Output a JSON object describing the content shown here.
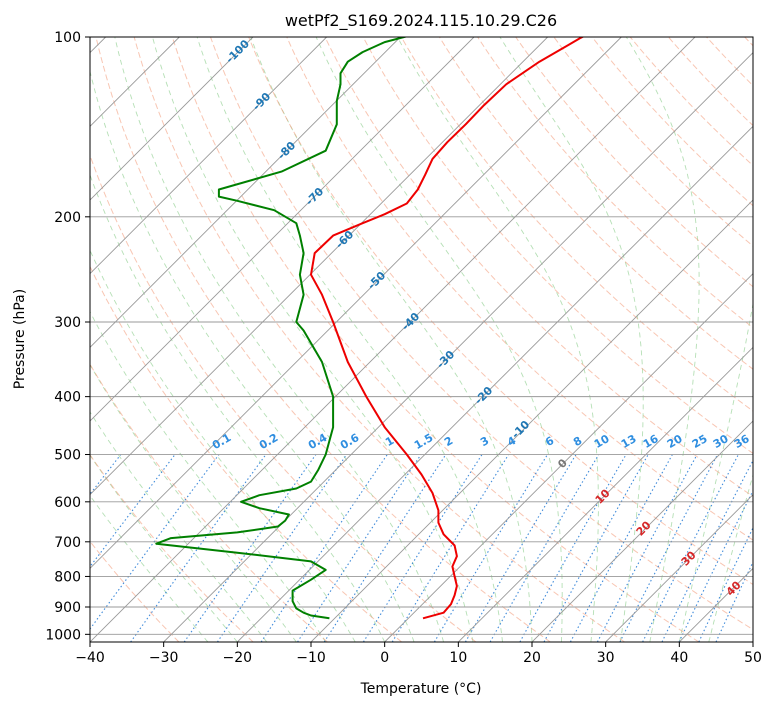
{
  "chart_data": {
    "type": "line",
    "title": "wetPf2_S169.2024.115.10.29.C26",
    "xlabel": "Temperature (°C)",
    "ylabel": "Pressure (hPa)",
    "xlim": [
      -40,
      50
    ],
    "ylim": [
      1030,
      100
    ],
    "y_scale": "log",
    "grid": true,
    "x_ticks": [
      -40,
      -30,
      -20,
      -10,
      0,
      10,
      20,
      30,
      40,
      50
    ],
    "y_ticks": [
      1000,
      900,
      800,
      700,
      600,
      500,
      400,
      300,
      200,
      100
    ],
    "series": [
      {
        "name": "",
        "color": "#ee0000",
        "x": [
          5.2,
          8.0,
          9.0,
          9.5,
          9.8,
          9.5,
          9.2,
          9.8,
          9.5,
          8.0,
          7.3,
          7.3,
          6.5,
          5.0,
          3.0,
          0.0,
          -2.5,
          -5.0,
          -7.0,
          -8.5,
          -10.0,
          -9.5,
          -7.0,
          -3.0,
          0.0,
          3.0,
          4.5,
          5.5,
          6.5,
          8.5,
          11.0,
          13.5,
          16.5,
          21.0,
          25.0,
          26.5,
          27.5
        ],
        "y": [
          940,
          920,
          890,
          860,
          830,
          800,
          770,
          740,
          710,
          680,
          650,
          620,
          580,
          540,
          500,
          450,
          400,
          350,
          300,
          270,
          250,
          230,
          215,
          205,
          198,
          190,
          180,
          170,
          160,
          150,
          140,
          130,
          120,
          110,
          103,
          100.5,
          99
        ]
      },
      {
        "name": "",
        "color": "#008000",
        "x": [
          -7.5,
          -10.0,
          -11.0,
          -12.0,
          -12.5,
          -12.5,
          -10.0,
          -8.0,
          -10.0,
          -20.0,
          -31.0,
          -29.0,
          -20.0,
          -14.5,
          -13.5,
          -13.0,
          -17.0,
          -19.5,
          -17.0,
          -12.0,
          -10.0,
          -9.0,
          -8.0,
          -7.0,
          -7.0,
          -8.5,
          -11.0,
          -12.0,
          -11.0,
          -11.5,
          -11.0,
          -11.5,
          -12.0,
          -15.0,
          -20.0,
          -22.5,
          -22.5,
          -14.0,
          -8.0,
          -6.5,
          -6.5,
          -6.0,
          -6.0,
          -5.0,
          -3.0,
          0.0,
          4.0
        ],
        "y": [
          940,
          930,
          920,
          905,
          880,
          845,
          810,
          780,
          755,
          730,
          705,
          690,
          675,
          660,
          645,
          630,
          615,
          600,
          585,
          570,
          555,
          530,
          500,
          450,
          400,
          350,
          310,
          300,
          270,
          250,
          230,
          215,
          205,
          195,
          188,
          185,
          180,
          168,
          155,
          140,
          128,
          120,
          115,
          110,
          106,
          102,
          99
        ]
      }
    ],
    "annotations": {
      "dry_adiabat_labels": [
        "-100",
        "-90",
        "-80",
        "-70",
        "-60",
        "-50",
        "-40",
        "-30",
        "-20",
        "-10",
        "0",
        "10",
        "20",
        "30",
        "40"
      ],
      "mixing_ratio_labels": [
        "0.1",
        "0.2",
        "0.4",
        "0.6",
        "1",
        "1.5",
        "2",
        "3",
        "4",
        "6",
        "8",
        "10",
        "13",
        "16",
        "20",
        "25",
        "30",
        "36"
      ]
    }
  }
}
